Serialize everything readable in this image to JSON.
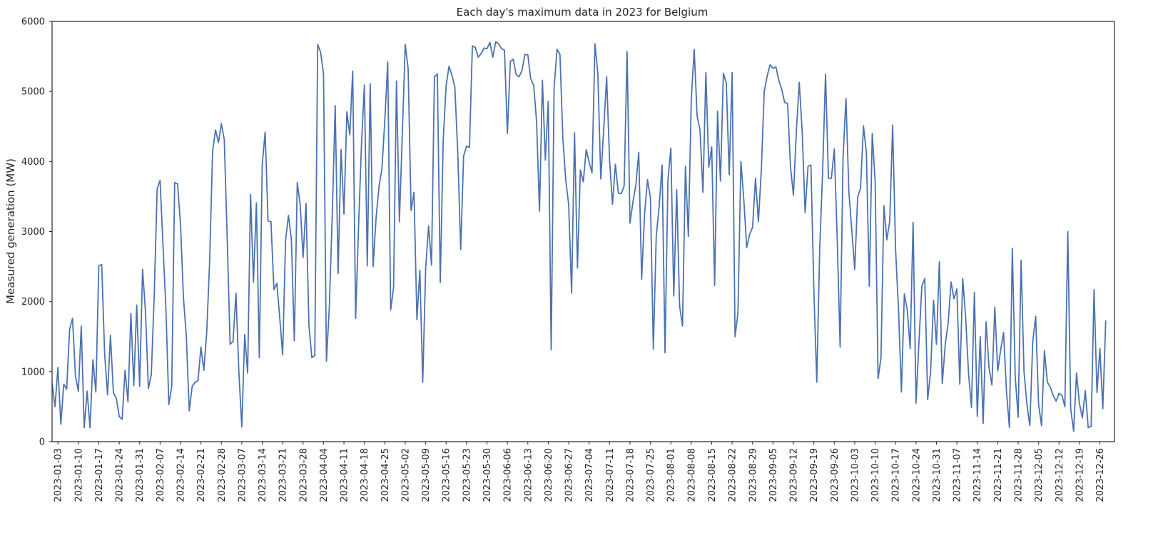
{
  "chart_data": {
    "type": "line",
    "title": "Each day's maximum data in 2023 for Belgium",
    "xlabel": "",
    "ylabel": "Measured generation (MW)",
    "x_range": [
      "2023-01-01",
      "2023-12-31"
    ],
    "ylim": [
      0,
      6000
    ],
    "yticks": [
      0,
      1000,
      2000,
      3000,
      4000,
      5000,
      6000
    ],
    "xticks": [
      "2023-01-03",
      "2023-01-10",
      "2023-01-17",
      "2023-01-24",
      "2023-01-31",
      "2023-02-07",
      "2023-02-14",
      "2023-02-21",
      "2023-02-28",
      "2023-03-07",
      "2023-03-14",
      "2023-03-21",
      "2023-03-28",
      "2023-04-04",
      "2023-04-11",
      "2023-04-18",
      "2023-04-25",
      "2023-05-02",
      "2023-05-09",
      "2023-05-16",
      "2023-05-23",
      "2023-05-30",
      "2023-06-06",
      "2023-06-13",
      "2023-06-20",
      "2023-06-27",
      "2023-07-04",
      "2023-07-11",
      "2023-07-18",
      "2023-07-25",
      "2023-08-01",
      "2023-08-08",
      "2023-08-15",
      "2023-08-22",
      "2023-08-29",
      "2023-09-05",
      "2023-09-12",
      "2023-09-19",
      "2023-09-26",
      "2023-10-03",
      "2023-10-10",
      "2023-10-17",
      "2023-10-24",
      "2023-10-31",
      "2023-11-07",
      "2023-11-14",
      "2023-11-21",
      "2023-11-28",
      "2023-12-05",
      "2023-12-12",
      "2023-12-19",
      "2023-12-26"
    ],
    "grid": false,
    "line_color": "#4c72b0",
    "series": [
      {
        "values": [
          830,
          500,
          1060,
          250,
          820,
          750,
          1600,
          1760,
          940,
          720,
          1650,
          200,
          720,
          200,
          1170,
          710,
          2510,
          2530,
          1260,
          670,
          1520,
          700,
          620,
          360,
          320,
          1020,
          570,
          1830,
          800,
          1950,
          790,
          2460,
          1860,
          760,
          960,
          2090,
          3610,
          3730,
          2800,
          1900,
          530,
          790,
          3700,
          3680,
          3100,
          2060,
          1500,
          440,
          790,
          850,
          870,
          1350,
          1020,
          1570,
          2600,
          4150,
          4450,
          4270,
          4540,
          4310,
          2900,
          1390,
          1430,
          2120,
          990,
          210,
          1530,
          980,
          3530,
          2280,
          3410,
          1200,
          3960,
          4420,
          3150,
          3140,
          2170,
          2260,
          1770,
          1240,
          2880,
          3230,
          2880,
          1440,
          3700,
          3390,
          2630,
          3400,
          1660,
          1200,
          1230,
          5670,
          5560,
          5250,
          1150,
          1930,
          3250,
          4800,
          2400,
          4170,
          3250,
          4710,
          4380,
          5290,
          1760,
          3060,
          4240,
          5090,
          2510,
          5110,
          2500,
          3190,
          3640,
          3890,
          4590,
          5420,
          1880,
          2200,
          5150,
          3140,
          4400,
          5670,
          5320,
          3300,
          3560,
          1740,
          2450,
          850,
          2480,
          3080,
          2520,
          5210,
          5250,
          2270,
          4300,
          5080,
          5360,
          5230,
          5060,
          4120,
          2740,
          4080,
          4220,
          4200,
          5650,
          5630,
          5490,
          5540,
          5620,
          5610,
          5700,
          5490,
          5710,
          5680,
          5610,
          5590,
          4400,
          5430,
          5460,
          5240,
          5210,
          5300,
          5530,
          5520,
          5180,
          5090,
          4570,
          3290,
          5160,
          4020,
          4860,
          1310,
          5050,
          5600,
          5530,
          4330,
          3730,
          3380,
          2120,
          4410,
          2480,
          3880,
          3710,
          4170,
          3990,
          3840,
          5680,
          5250,
          3750,
          4460,
          5210,
          4020,
          3390,
          3960,
          3550,
          3540,
          3650,
          5570,
          3120,
          3420,
          3660,
          4130,
          2320,
          3250,
          3740,
          3480,
          1320,
          2940,
          3360,
          3950,
          1270,
          3730,
          4190,
          2080,
          3600,
          1940,
          1650,
          3930,
          2930,
          4880,
          5600,
          4650,
          4450,
          3560,
          5270,
          3920,
          4210,
          2230,
          4720,
          3720,
          5260,
          5120,
          3810,
          5270,
          1500,
          1840,
          4000,
          3450,
          2770,
          2960,
          3060,
          3760,
          3140,
          3880,
          5000,
          5220,
          5380,
          5330,
          5350,
          5160,
          5030,
          4840,
          4830,
          3920,
          3520,
          4430,
          5130,
          4430,
          3270,
          3930,
          3950,
          2170,
          850,
          2740,
          3850,
          5250,
          3760,
          3760,
          4180,
          2900,
          1350,
          4060,
          4900,
          3560,
          3020,
          2460,
          3490,
          3620,
          4510,
          4120,
          2220,
          4400,
          3720,
          900,
          1200,
          3370,
          2880,
          3150,
          4520,
          2740,
          1890,
          710,
          2110,
          1880,
          1330,
          3130,
          550,
          1420,
          2220,
          2330,
          600,
          1000,
          2020,
          1390,
          2570,
          830,
          1380,
          1690,
          2280,
          2040,
          2180,
          820,
          2330,
          1780,
          970,
          490,
          2130,
          360,
          1500,
          260,
          1710,
          1060,
          810,
          1920,
          1010,
          1310,
          1560,
          710,
          200,
          2760,
          920,
          350,
          2590,
          1000,
          530,
          230,
          1430,
          1790,
          530,
          230,
          1300,
          850,
          780,
          660,
          580,
          690,
          660,
          500,
          3000,
          470,
          150,
          980,
          540,
          340,
          730,
          200,
          220,
          2170,
          700,
          1330,
          470,
          1730
        ]
      }
    ]
  }
}
